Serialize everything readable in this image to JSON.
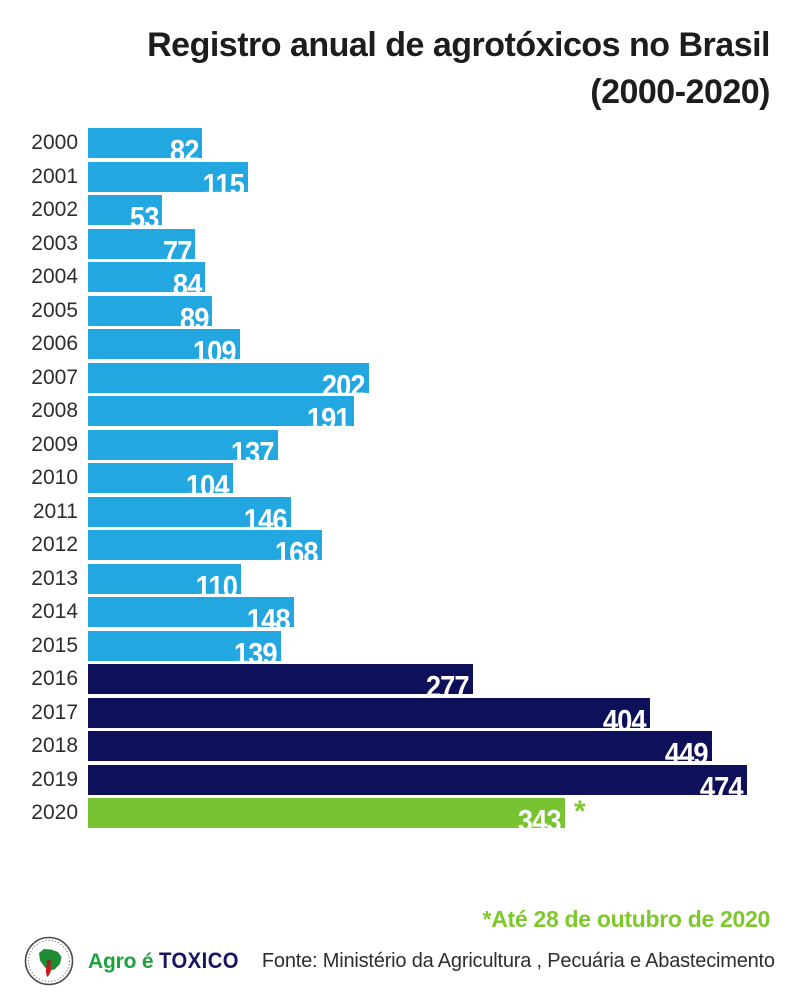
{
  "title": {
    "line1": "Registro anual de agrotóxicos no Brasil",
    "line2": "(2000-2020)"
  },
  "chart_data": {
    "type": "bar",
    "orientation": "horizontal",
    "title": "Registro anual de agrotóxicos no Brasil (2000-2020)",
    "categories": [
      "2000",
      "2001",
      "2002",
      "2003",
      "2004",
      "2005",
      "2006",
      "2007",
      "2008",
      "2009",
      "2010",
      "2011",
      "2012",
      "2013",
      "2014",
      "2015",
      "2016",
      "2017",
      "2018",
      "2019",
      "2020"
    ],
    "values": [
      82,
      115,
      53,
      77,
      84,
      89,
      109,
      202,
      191,
      137,
      104,
      146,
      168,
      110,
      148,
      139,
      277,
      404,
      449,
      474,
      343
    ],
    "xlim": [
      0,
      474
    ],
    "grid": false,
    "legend": "none",
    "value_labels": "inside-end, white bold",
    "palette": {
      "light_blue": "#22A7E0",
      "navy": "#0E1059",
      "green": "#77C331"
    },
    "color_keys": [
      "light_blue",
      "light_blue",
      "light_blue",
      "light_blue",
      "light_blue",
      "light_blue",
      "light_blue",
      "light_blue",
      "light_blue",
      "light_blue",
      "light_blue",
      "light_blue",
      "light_blue",
      "light_blue",
      "light_blue",
      "light_blue",
      "navy",
      "navy",
      "navy",
      "navy",
      "green"
    ],
    "annotation": {
      "category": "2020",
      "marker": "*",
      "color": "#7FC82C"
    }
  },
  "footer": {
    "note": "*Até 28 de outubro de 2020",
    "note_color": "#7FC82C",
    "brand": {
      "part1": "Agro é ",
      "part2": "TOXICO",
      "part1_color": "#1CA23C",
      "part2_color": "#1A1464"
    },
    "source": "Fonte: Ministério da Agricultura , Pecuária e Abastecimento"
  }
}
